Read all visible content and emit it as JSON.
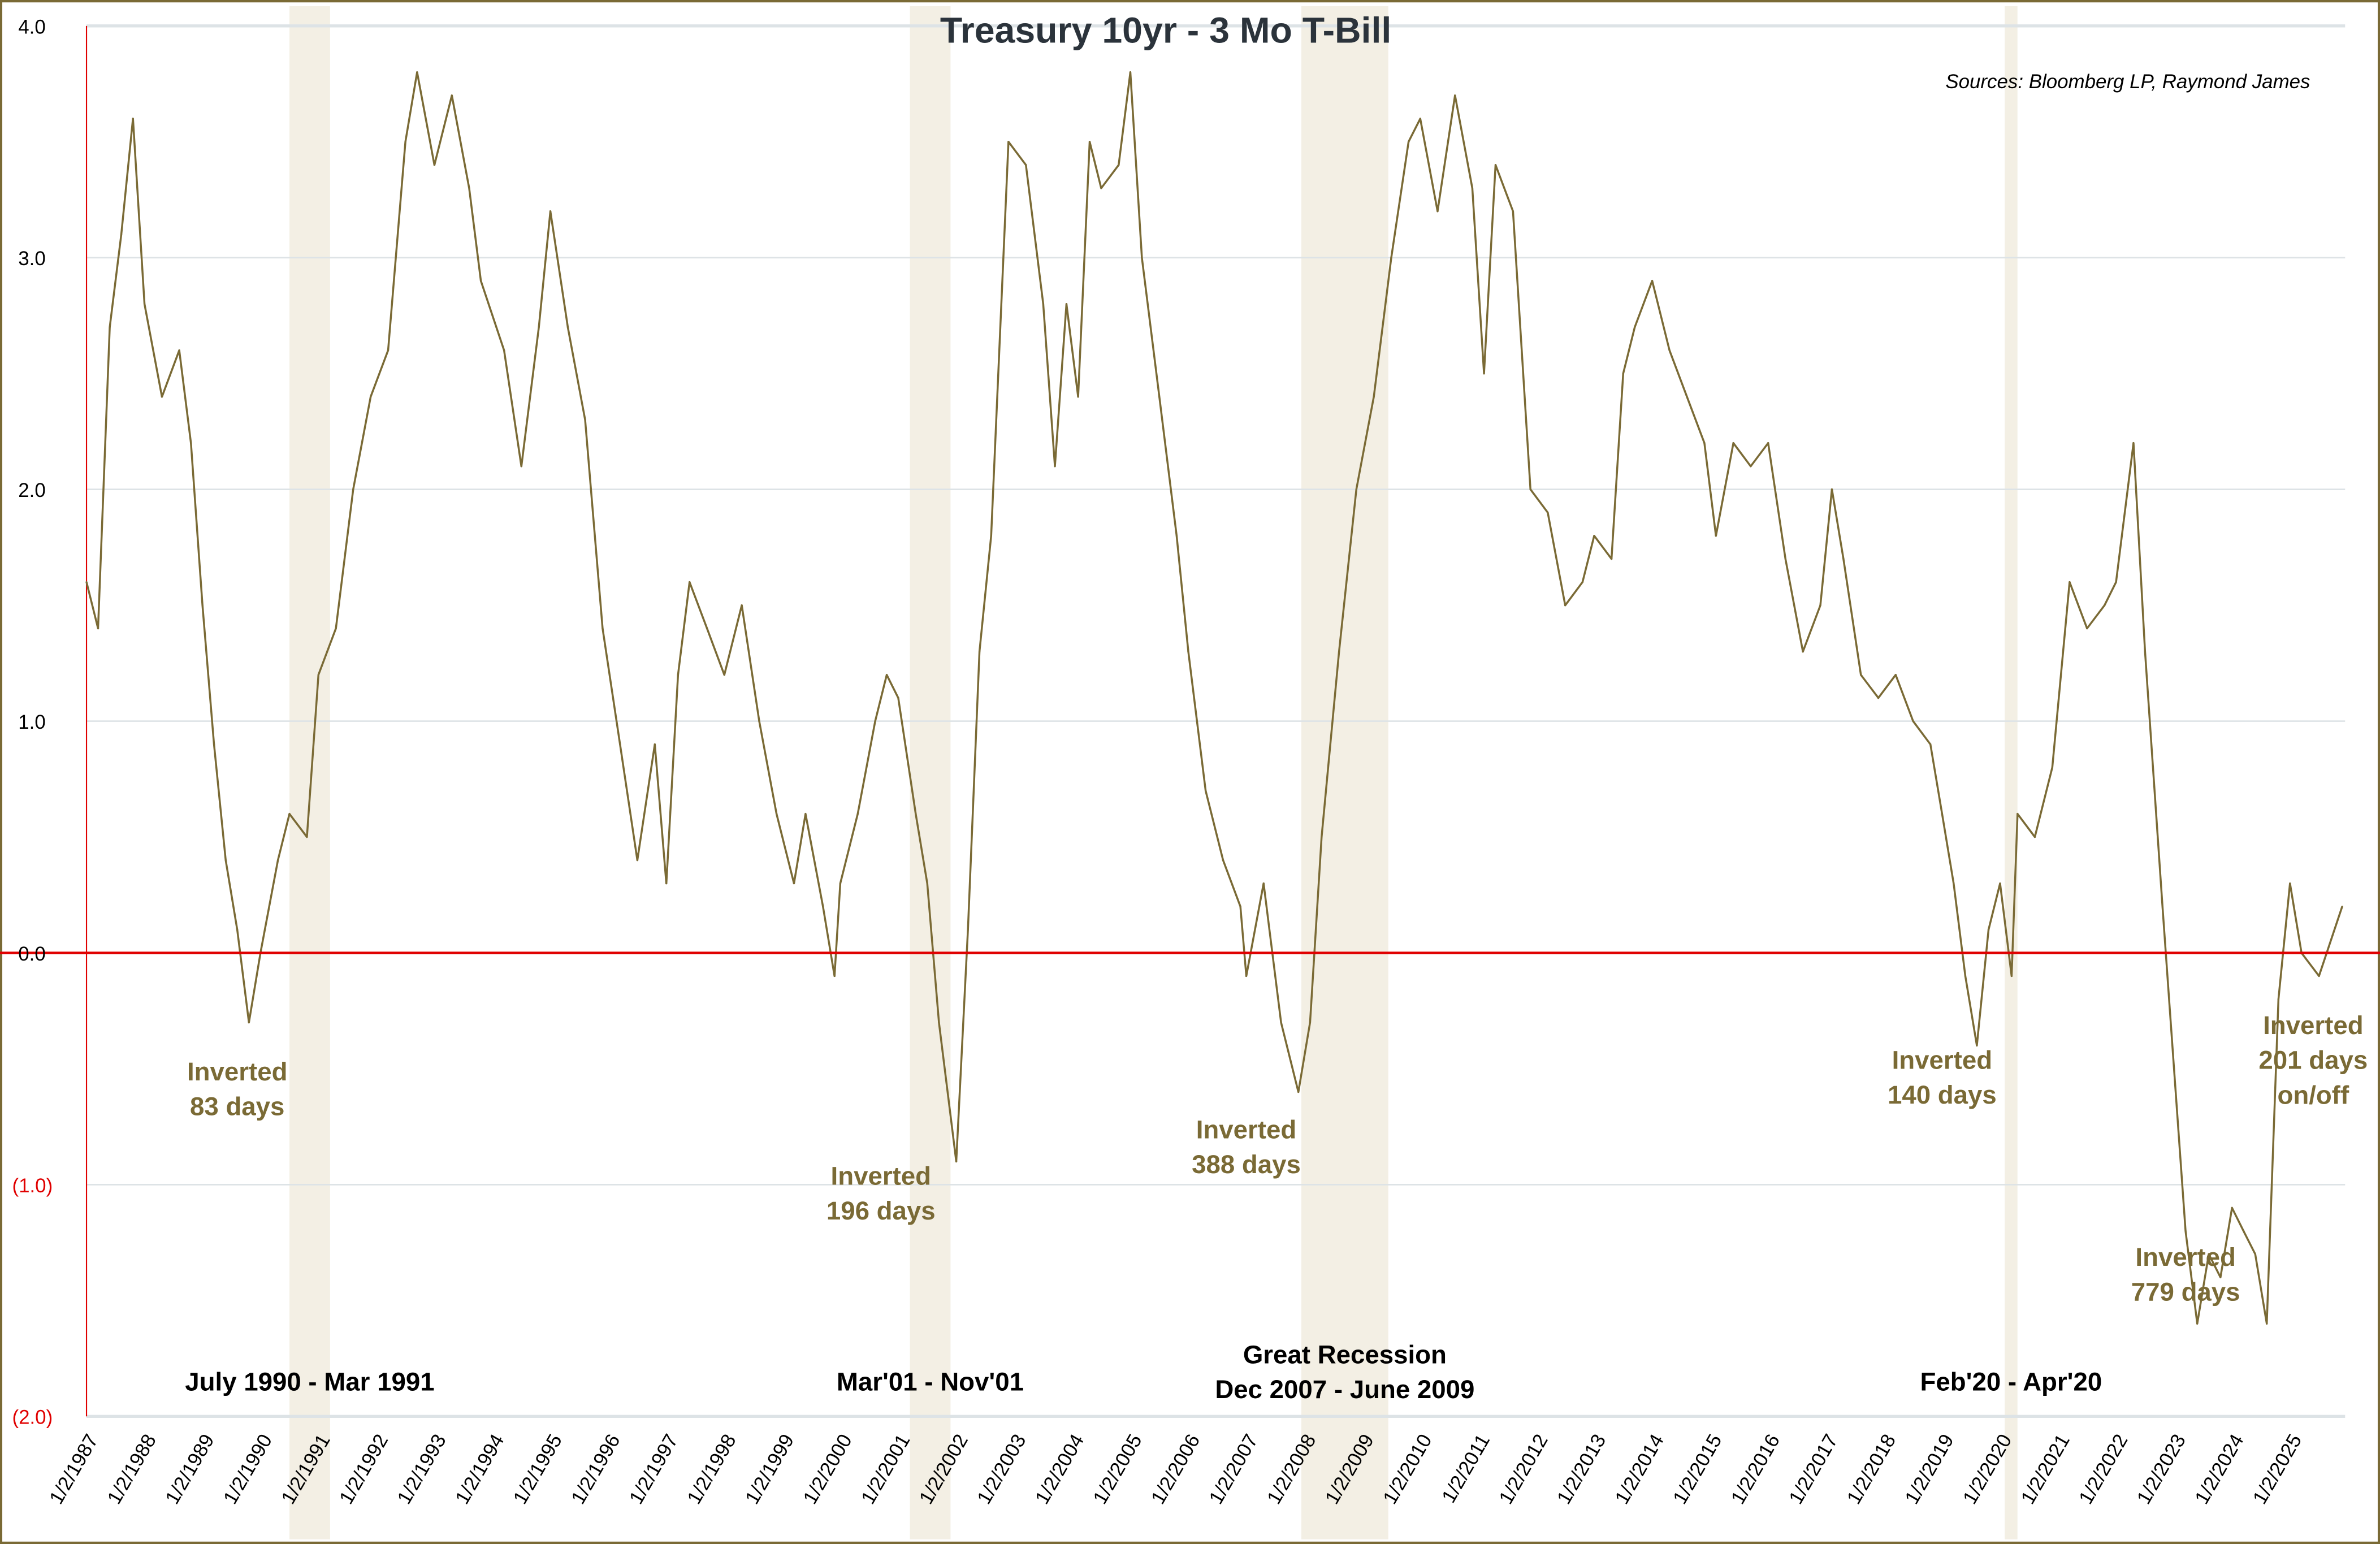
{
  "chart_data": {
    "type": "line",
    "title": "Treasury 10yr - 3 Mo T-Bill",
    "source": "Sources: Bloomberg LP, Raymond James",
    "xlabel": "",
    "ylabel": "",
    "xlim": [
      1987.0,
      2025.95
    ],
    "ylim": [
      -2.0,
      4.0
    ],
    "grid": true,
    "legend": "none",
    "colors": {
      "series": "#7a6a35",
      "zero_line": "#e00000",
      "recession_band": "#f3efe4",
      "frame": "#7a6a35",
      "annotation": "#7a6a35",
      "negative_tick": "#e00000"
    },
    "y_ticks": [
      {
        "value": 4,
        "label": "4.0"
      },
      {
        "value": 3,
        "label": "3.0"
      },
      {
        "value": 2,
        "label": "2.0"
      },
      {
        "value": 1,
        "label": "1.0"
      },
      {
        "value": 0,
        "label": "0.0"
      },
      {
        "value": -1,
        "label": "(1.0)"
      },
      {
        "value": -2,
        "label": "(2.0)"
      }
    ],
    "x_tick_labels": [
      "1/2/1987",
      "1/2/1988",
      "1/2/1989",
      "1/2/1990",
      "1/2/1991",
      "1/2/1992",
      "1/2/1993",
      "1/2/1994",
      "1/2/1995",
      "1/2/1996",
      "1/2/1997",
      "1/2/1998",
      "1/2/1999",
      "1/2/2000",
      "1/2/2001",
      "1/2/2002",
      "1/2/2003",
      "1/2/2004",
      "1/2/2005",
      "1/2/2006",
      "1/2/2007",
      "1/2/2008",
      "1/2/2009",
      "1/2/2010",
      "1/2/2011",
      "1/2/2012",
      "1/2/2013",
      "1/2/2014",
      "1/2/2015",
      "1/2/2016",
      "1/2/2017",
      "1/2/2018",
      "1/2/2019",
      "1/2/2020",
      "1/2/2021",
      "1/2/2022",
      "1/2/2023",
      "1/2/2024",
      "1/2/2025"
    ],
    "recessions": [
      {
        "start": 1990.5,
        "end": 1991.2,
        "label": "July 1990 - Mar 1991"
      },
      {
        "start": 2001.2,
        "end": 2001.9,
        "label": "Mar'01 - Nov'01"
      },
      {
        "start": 2007.95,
        "end": 2009.45,
        "label": "Great Recession",
        "label2": "Dec 2007 - June 2009"
      },
      {
        "start": 2020.08,
        "end": 2020.3,
        "label": "Feb'20 - Apr'20"
      }
    ],
    "annotations": [
      {
        "x": 1989.6,
        "y": -0.55,
        "line1": "Inverted",
        "line2": "83 days"
      },
      {
        "x": 2000.7,
        "y": -1.0,
        "line1": "Inverted",
        "line2": "196 days"
      },
      {
        "x": 2007.0,
        "y": -0.8,
        "line1": "Inverted",
        "line2": "388 days"
      },
      {
        "x": 2019.0,
        "y": -0.5,
        "line1": "Inverted",
        "line2": "140 days"
      },
      {
        "x": 2023.2,
        "y": -1.35,
        "line1": "Inverted",
        "line2": "779 days"
      },
      {
        "x": 2025.4,
        "y": -0.35,
        "line1": "Inverted",
        "line2": "201 days",
        "line3": "on/off"
      }
    ],
    "series": [
      {
        "x": [
          1987.0,
          1987.2,
          1987.4,
          1987.6,
          1987.8,
          1988.0,
          1988.3,
          1988.6,
          1988.8,
          1989.0,
          1989.2,
          1989.4,
          1989.6,
          1989.8,
          1990.0,
          1990.3,
          1990.5,
          1990.8,
          1991.0,
          1991.3,
          1991.6,
          1991.9,
          1992.2,
          1992.5,
          1992.7,
          1993.0,
          1993.3,
          1993.6,
          1993.8,
          1994.2,
          1994.5,
          1994.8,
          1995.0,
          1995.3,
          1995.6,
          1995.9,
          1996.2,
          1996.5,
          1996.8,
          1997.0,
          1997.2,
          1997.4,
          1997.7,
          1998.0,
          1998.3,
          1998.6,
          1998.9,
          1999.2,
          1999.4,
          1999.7,
          1999.9,
          2000.0,
          2000.3,
          2000.6,
          2000.8,
          2001.0,
          2001.3,
          2001.5,
          2001.7,
          2001.9,
          2002.0,
          2002.2,
          2002.4,
          2002.6,
          2002.9,
          2003.2,
          2003.5,
          2003.7,
          2003.9,
          2004.1,
          2004.3,
          2004.5,
          2004.8,
          2005.0,
          2005.2,
          2005.5,
          2005.8,
          2006.0,
          2006.3,
          2006.6,
          2006.9,
          2007.0,
          2007.3,
          2007.6,
          2007.9,
          2008.1,
          2008.3,
          2008.6,
          2008.9,
          2009.2,
          2009.5,
          2009.8,
          2010.0,
          2010.3,
          2010.6,
          2010.9,
          2011.1,
          2011.3,
          2011.6,
          2011.9,
          2012.2,
          2012.5,
          2012.8,
          2013.0,
          2013.3,
          2013.5,
          2013.7,
          2014.0,
          2014.3,
          2014.6,
          2014.9,
          2015.1,
          2015.4,
          2015.7,
          2016.0,
          2016.3,
          2016.6,
          2016.9,
          2017.1,
          2017.3,
          2017.6,
          2017.9,
          2018.2,
          2018.5,
          2018.8,
          2019.0,
          2019.2,
          2019.4,
          2019.6,
          2019.8,
          2020.0,
          2020.2,
          2020.3,
          2020.6,
          2020.9,
          2021.2,
          2021.5,
          2021.8,
          2022.0,
          2022.3,
          2022.5,
          2022.8,
          2023.0,
          2023.2,
          2023.4,
          2023.6,
          2023.8,
          2024.0,
          2024.2,
          2024.4,
          2024.6,
          2024.8,
          2025.0,
          2025.2,
          2025.5,
          2025.9
        ],
        "values": [
          1.6,
          1.4,
          2.7,
          3.1,
          3.6,
          2.8,
          2.4,
          2.6,
          2.2,
          1.5,
          0.9,
          0.4,
          0.1,
          -0.3,
          0.0,
          0.4,
          0.6,
          0.5,
          1.2,
          1.4,
          2.0,
          2.4,
          2.6,
          3.5,
          3.8,
          3.4,
          3.7,
          3.3,
          2.9,
          2.6,
          2.1,
          2.7,
          3.2,
          2.7,
          2.3,
          1.4,
          0.9,
          0.4,
          0.9,
          0.3,
          1.2,
          1.6,
          1.4,
          1.2,
          1.5,
          1.0,
          0.6,
          0.3,
          0.6,
          0.2,
          -0.1,
          0.3,
          0.6,
          1.0,
          1.2,
          1.1,
          0.6,
          0.3,
          -0.3,
          -0.7,
          -0.9,
          0.1,
          1.3,
          1.8,
          3.5,
          3.4,
          2.8,
          2.1,
          2.8,
          2.4,
          3.5,
          3.3,
          3.4,
          3.8,
          3.0,
          2.4,
          1.8,
          1.3,
          0.7,
          0.4,
          0.2,
          -0.1,
          0.3,
          -0.3,
          -0.6,
          -0.3,
          0.5,
          1.3,
          2.0,
          2.4,
          3.0,
          3.5,
          3.6,
          3.2,
          3.7,
          3.3,
          2.5,
          3.4,
          3.2,
          2.0,
          1.9,
          1.5,
          1.6,
          1.8,
          1.7,
          2.5,
          2.7,
          2.9,
          2.6,
          2.4,
          2.2,
          1.8,
          2.2,
          2.1,
          2.2,
          1.7,
          1.3,
          1.5,
          2.0,
          1.7,
          1.2,
          1.1,
          1.2,
          1.0,
          0.9,
          0.6,
          0.3,
          -0.1,
          -0.4,
          0.1,
          0.3,
          -0.1,
          0.6,
          0.5,
          0.8,
          1.6,
          1.4,
          1.5,
          1.6,
          2.2,
          1.3,
          0.2,
          -0.5,
          -1.2,
          -1.6,
          -1.3,
          -1.4,
          -1.1,
          -1.2,
          -1.3,
          -1.6,
          -0.2,
          0.3,
          0.0,
          -0.1,
          0.2
        ]
      }
    ]
  }
}
